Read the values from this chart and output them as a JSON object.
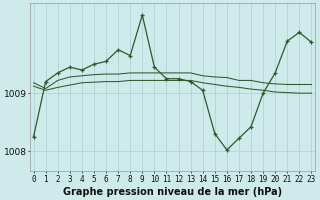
{
  "xlabel": "Graphe pression niveau de la mer (hPa)",
  "background_color": "#ceeaea",
  "grid_color": "#b0d4d4",
  "line_color": "#2d5a2d",
  "hours": [
    0,
    1,
    2,
    3,
    4,
    5,
    6,
    7,
    8,
    9,
    10,
    11,
    12,
    13,
    14,
    15,
    16,
    17,
    18,
    19,
    20,
    21,
    22,
    23
  ],
  "pressure_main": [
    1008.25,
    1009.2,
    1009.35,
    1009.45,
    1009.4,
    1009.5,
    1009.55,
    1009.75,
    1009.65,
    1010.35,
    1009.45,
    1009.25,
    1009.25,
    1009.2,
    1009.05,
    1008.3,
    1008.02,
    1008.22,
    1008.42,
    1009.0,
    1009.35,
    1009.9,
    1010.05,
    1009.88
  ],
  "pressure_line2": [
    1009.18,
    1009.08,
    1009.22,
    1009.28,
    1009.3,
    1009.32,
    1009.33,
    1009.33,
    1009.35,
    1009.35,
    1009.35,
    1009.35,
    1009.35,
    1009.35,
    1009.3,
    1009.28,
    1009.27,
    1009.22,
    1009.22,
    1009.18,
    1009.16,
    1009.15,
    1009.15,
    1009.15
  ],
  "pressure_line3": [
    1009.12,
    1009.05,
    1009.1,
    1009.14,
    1009.18,
    1009.19,
    1009.2,
    1009.2,
    1009.22,
    1009.22,
    1009.22,
    1009.22,
    1009.22,
    1009.22,
    1009.18,
    1009.15,
    1009.12,
    1009.1,
    1009.07,
    1009.05,
    1009.02,
    1009.01,
    1009.0,
    1009.0
  ],
  "ylim": [
    1007.65,
    1010.55
  ],
  "yticks": [
    1008.0,
    1009.0
  ],
  "xlabel_fontsize": 7.0,
  "tick_fontsize": 5.5
}
